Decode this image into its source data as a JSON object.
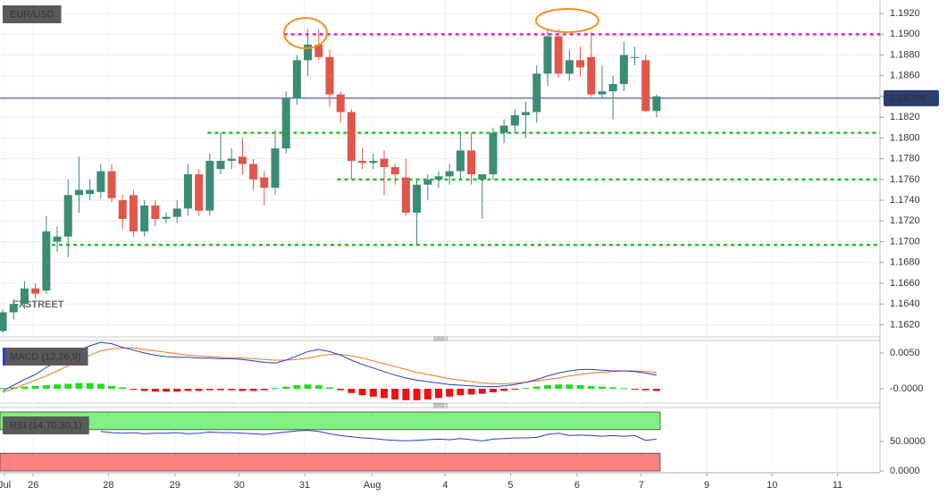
{
  "chart_data": [
    {
      "type": "candlestick",
      "title": "EUR/USD",
      "watermark": "FXSTREET",
      "xlim": [
        -0.25,
        80.5
      ],
      "xticks": [
        {
          "value": 0.16,
          "label": "Jul"
        },
        {
          "value": 2.8,
          "label": "26"
        },
        {
          "value": 9.7,
          "label": "28"
        },
        {
          "value": 15.8,
          "label": "29"
        },
        {
          "value": 21.7,
          "label": "30"
        },
        {
          "value": 27.7,
          "label": "31"
        },
        {
          "value": 33.9,
          "label": "Aug"
        },
        {
          "value": 40.6,
          "label": "4"
        },
        {
          "value": 46.6,
          "label": "5"
        },
        {
          "value": 52.7,
          "label": "6"
        },
        {
          "value": 58.6,
          "label": "7"
        },
        {
          "value": 64.6,
          "label": "9"
        },
        {
          "value": 70.6,
          "label": "10"
        },
        {
          "value": 76.6,
          "label": "11"
        }
      ],
      "ylim": [
        1.161,
        1.1933
      ],
      "yticks": [
        {
          "value": 1.192,
          "label": "1.1920"
        },
        {
          "value": 1.19,
          "label": "1.1900"
        },
        {
          "value": 1.188,
          "label": "1.1880"
        },
        {
          "value": 1.186,
          "label": "1.1860"
        },
        {
          "value": 1.184,
          "label": "1.1840"
        },
        {
          "value": 1.182,
          "label": "1.1820"
        },
        {
          "value": 1.18,
          "label": "1.1800"
        },
        {
          "value": 1.178,
          "label": "1.1780"
        },
        {
          "value": 1.176,
          "label": "1.1760"
        },
        {
          "value": 1.174,
          "label": "1.1740"
        },
        {
          "value": 1.172,
          "label": "1.1720"
        },
        {
          "value": 1.17,
          "label": "1.1700"
        },
        {
          "value": 1.168,
          "label": "1.1680"
        },
        {
          "value": 1.166,
          "label": "1.1660"
        },
        {
          "value": 1.164,
          "label": "1.1640"
        },
        {
          "value": 1.162,
          "label": "1.1620"
        }
      ],
      "grid": true,
      "up_color": "#3b8c74",
      "down_color": "#e0564b",
      "open": [
        1.1614,
        1.1632,
        1.164,
        1.1655,
        1.1653,
        1.17,
        1.1705,
        1.1745,
        1.1746,
        1.1748,
        1.1768,
        1.174,
        1.1745,
        1.171,
        1.1735,
        1.1722,
        1.1724,
        1.1732,
        1.1765,
        1.173,
        1.177,
        1.1778,
        1.1782,
        1.1775,
        1.1762,
        1.1752,
        1.179,
        1.1838,
        1.1875,
        1.189,
        1.1878,
        1.1842,
        1.1825,
        1.1778,
        1.1776,
        1.178,
        1.1772,
        1.1762,
        1.1728,
        1.1755,
        1.176,
        1.1763,
        1.1768,
        1.1788,
        1.176,
        1.1765,
        1.1805,
        1.1812,
        1.1822,
        1.1825,
        1.1862,
        1.1898,
        1.1862,
        1.1875,
        1.1878,
        1.1842,
        1.1845,
        1.1852,
        1.1878,
        1.1875,
        1.1826
      ],
      "high": [
        1.1635,
        1.1645,
        1.1662,
        1.166,
        1.1725,
        1.1715,
        1.176,
        1.1782,
        1.176,
        1.1775,
        1.1775,
        1.1745,
        1.175,
        1.174,
        1.174,
        1.1728,
        1.174,
        1.1775,
        1.177,
        1.1785,
        1.1805,
        1.179,
        1.18,
        1.178,
        1.1768,
        1.1808,
        1.1845,
        1.188,
        1.1905,
        1.1905,
        1.1885,
        1.1845,
        1.1828,
        1.179,
        1.1785,
        1.1788,
        1.1775,
        1.178,
        1.176,
        1.1765,
        1.1768,
        1.1775,
        1.1805,
        1.1805,
        1.1765,
        1.181,
        1.1818,
        1.1828,
        1.1835,
        1.187,
        1.1905,
        1.1905,
        1.1885,
        1.1888,
        1.1902,
        1.187,
        1.186,
        1.1893,
        1.1888,
        1.188,
        1.1842
      ],
      "low": [
        1.1612,
        1.1625,
        1.1635,
        1.1645,
        1.165,
        1.169,
        1.1685,
        1.1728,
        1.174,
        1.1742,
        1.1738,
        1.1712,
        1.1705,
        1.1705,
        1.1715,
        1.1718,
        1.1718,
        1.1725,
        1.1725,
        1.1725,
        1.1765,
        1.177,
        1.1765,
        1.175,
        1.1735,
        1.1745,
        1.1785,
        1.1832,
        1.186,
        1.1875,
        1.183,
        1.1815,
        1.176,
        1.177,
        1.177,
        1.1745,
        1.1755,
        1.1725,
        1.1697,
        1.174,
        1.1752,
        1.1755,
        1.176,
        1.1755,
        1.1722,
        1.176,
        1.1795,
        1.1805,
        1.18,
        1.1815,
        1.185,
        1.1858,
        1.1855,
        1.186,
        1.184,
        1.1838,
        1.1818,
        1.1845,
        1.187,
        1.1825,
        1.182
      ],
      "close": [
        1.1632,
        1.164,
        1.1655,
        1.165,
        1.171,
        1.1705,
        1.1745,
        1.175,
        1.175,
        1.1768,
        1.1742,
        1.1722,
        1.171,
        1.1735,
        1.1722,
        1.1724,
        1.1732,
        1.1765,
        1.173,
        1.1778,
        1.1778,
        1.178,
        1.1775,
        1.176,
        1.1752,
        1.179,
        1.1838,
        1.1875,
        1.189,
        1.1878,
        1.1842,
        1.1825,
        1.1778,
        1.1776,
        1.1778,
        1.1772,
        1.1765,
        1.1728,
        1.1755,
        1.176,
        1.1763,
        1.1768,
        1.1788,
        1.1765,
        1.1765,
        1.1805,
        1.1812,
        1.1822,
        1.1825,
        1.1862,
        1.1898,
        1.1862,
        1.1875,
        1.1868,
        1.1842,
        1.1845,
        1.1852,
        1.188,
        1.1878,
        1.1826,
        1.184
      ],
      "levels": [
        {
          "value": 1.19,
          "from": 25.8,
          "color": "#e020e0"
        },
        {
          "value": 1.1805,
          "from": 18.8,
          "color": "#22c422"
        },
        {
          "value": 1.176,
          "from": 30.7,
          "color": "#22c422"
        },
        {
          "value": 1.1697,
          "from": 4.5,
          "color": "#22c422"
        }
      ],
      "last_price": 1.18384,
      "last_color": "#2a3f6e"
    },
    {
      "type": "macd",
      "title": "MACD (12,26,9)",
      "ylim": [
        -0.0015,
        0.0065
      ],
      "yticks": [
        {
          "value": 0.005,
          "label": "0.0050"
        },
        {
          "value": 0,
          "label": "-0.0000"
        }
      ],
      "positive_color": "#22dd22",
      "negative_color": "#ee1111",
      "macd_color": "#2240cc",
      "signal_color": "#ee7722",
      "histogram": [
        0.0001,
        0.0002,
        0.0003,
        0.0004,
        0.0005,
        0.0006,
        0.0007,
        0.0008,
        0.0008,
        0.0007,
        0.0004,
        0.0002,
        -0.0001,
        -0.0003,
        -0.0004,
        -0.0004,
        -0.0004,
        -0.0003,
        -0.0003,
        -0.0002,
        -0.0002,
        -0.0002,
        -0.0003,
        -0.0003,
        -0.0002,
        0.0001,
        0.0003,
        0.0005,
        0.0006,
        0.0005,
        0.0002,
        -0.0002,
        -0.0006,
        -0.0009,
        -0.0011,
        -0.0013,
        -0.0015,
        -0.0016,
        -0.0016,
        -0.0015,
        -0.0013,
        -0.0011,
        -0.0009,
        -0.0008,
        -0.0007,
        -0.0005,
        -0.0003,
        -0.0001,
        0.0001,
        0.0003,
        0.0005,
        0.0006,
        0.0006,
        0.0005,
        0.0004,
        0.0003,
        0.0002,
        0.0001,
        -0.0001,
        -0.0002,
        -0.0003
      ],
      "macd": [
        -0.0003,
        0.0005,
        0.0013,
        0.002,
        0.003,
        0.0038,
        0.0046,
        0.0054,
        0.006,
        0.0065,
        0.0063,
        0.0058,
        0.0054,
        0.005,
        0.0047,
        0.0045,
        0.0044,
        0.0044,
        0.0043,
        0.0043,
        0.0042,
        0.0042,
        0.0041,
        0.0039,
        0.0037,
        0.0036,
        0.004,
        0.0046,
        0.0052,
        0.0055,
        0.0052,
        0.0047,
        0.004,
        0.0034,
        0.0029,
        0.0024,
        0.0019,
        0.0015,
        0.0012,
        0.001,
        0.0008,
        0.0006,
        0.0005,
        0.0004,
        0.0003,
        0.0003,
        0.0004,
        0.0006,
        0.0009,
        0.0013,
        0.0018,
        0.0022,
        0.0025,
        0.0027,
        0.0027,
        0.0026,
        0.0025,
        0.0025,
        0.0024,
        0.0022,
        0.0019
      ],
      "signal": [
        -0.0005,
        0.0,
        0.0006,
        0.0012,
        0.0018,
        0.0025,
        0.0032,
        0.004,
        0.0047,
        0.0053,
        0.0056,
        0.0057,
        0.0057,
        0.0055,
        0.0053,
        0.0051,
        0.0049,
        0.0047,
        0.0046,
        0.0045,
        0.0044,
        0.0043,
        0.0043,
        0.0042,
        0.0041,
        0.004,
        0.004,
        0.0041,
        0.0043,
        0.0046,
        0.0048,
        0.0048,
        0.0046,
        0.0043,
        0.0039,
        0.0035,
        0.0031,
        0.0027,
        0.0023,
        0.002,
        0.0017,
        0.0014,
        0.0012,
        0.001,
        0.0008,
        0.0007,
        0.0007,
        0.0008,
        0.0009,
        0.0011,
        0.0013,
        0.0015,
        0.0018,
        0.002,
        0.0022,
        0.0023,
        0.0024,
        0.0025,
        0.0025,
        0.0024,
        0.0023
      ]
    },
    {
      "type": "rsi",
      "title": "RSI (14,70,30,1)",
      "ylim": [
        0,
        100
      ],
      "yticks": [
        {
          "value": 50,
          "label": "50.0000"
        },
        {
          "value": 0,
          "label": "0.0000"
        }
      ],
      "line_color": "#2240cc",
      "bands": [
        {
          "from": 70,
          "to": 100,
          "color": "#80f080"
        },
        {
          "from": 0,
          "to": 30,
          "color": "#ff8080"
        }
      ],
      "values": [
        null,
        null,
        null,
        null,
        null,
        null,
        null,
        null,
        null,
        67,
        65,
        64,
        65,
        63,
        64,
        64,
        65,
        63,
        64,
        66,
        65,
        65,
        64,
        63,
        62,
        64,
        66,
        68,
        69,
        67,
        63,
        60,
        58,
        56,
        55,
        53,
        52,
        51,
        52,
        53,
        54,
        53,
        55,
        53,
        51,
        54,
        55,
        56,
        56,
        57,
        62,
        64,
        60,
        61,
        60,
        59,
        60,
        59,
        60,
        52,
        54
      ]
    }
  ]
}
